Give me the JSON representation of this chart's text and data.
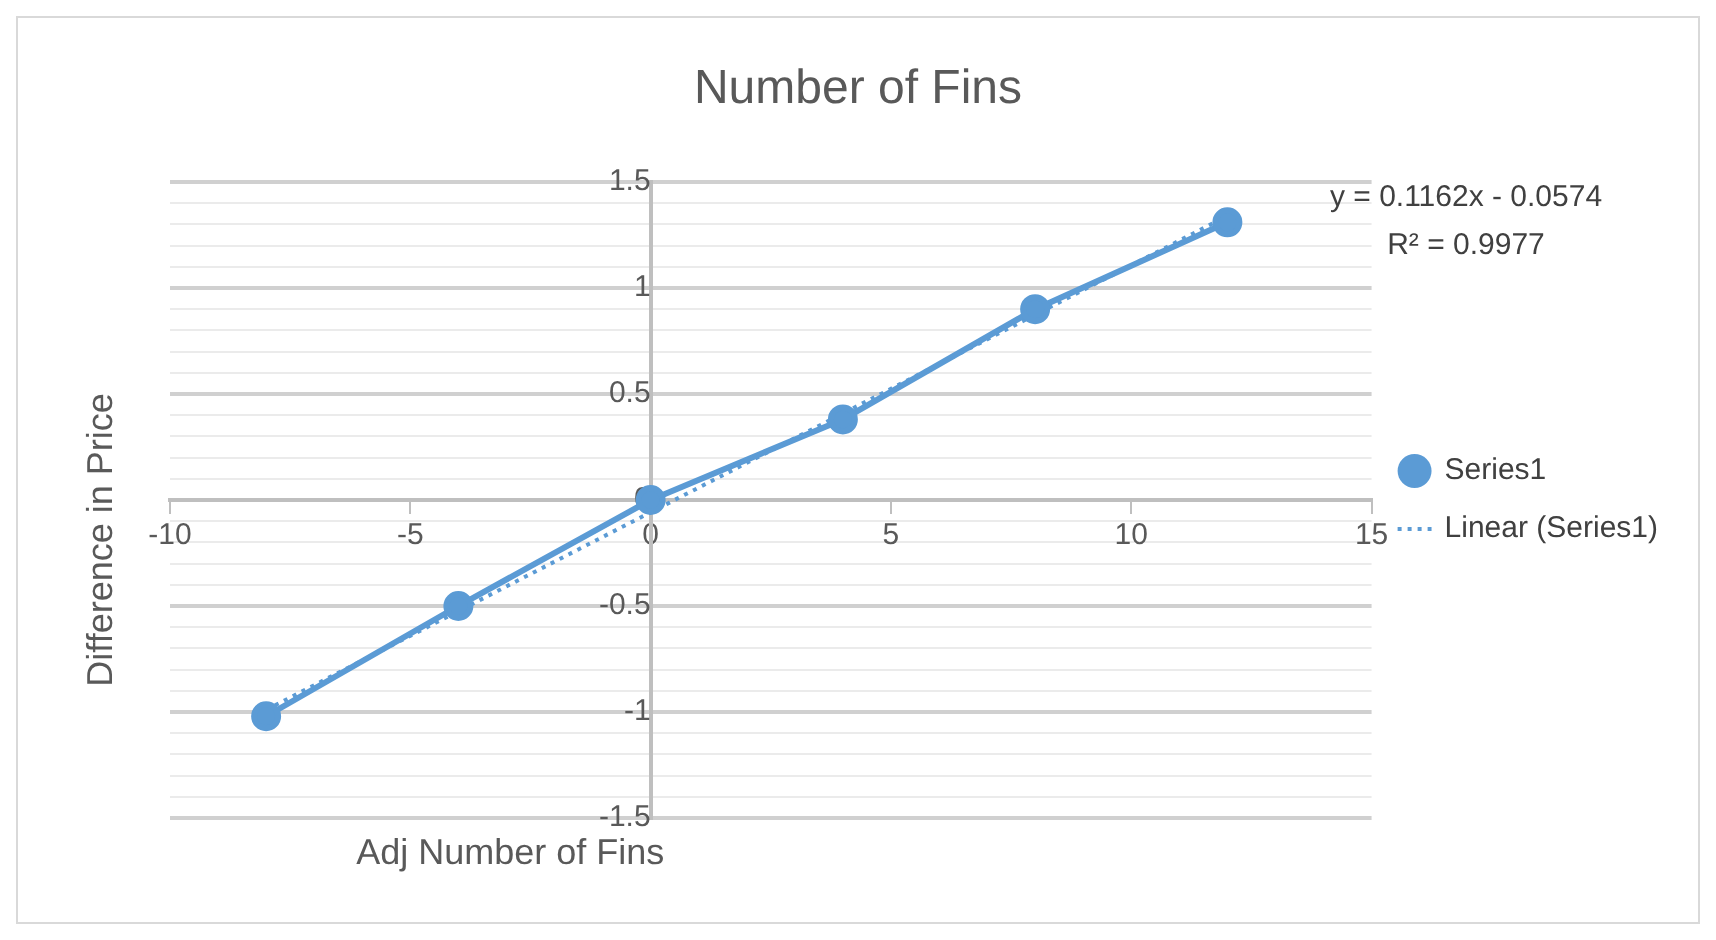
{
  "chart_data": {
    "type": "scatter",
    "title": "Number of Fins",
    "xlabel": "Adj Number of Fins",
    "ylabel": "Difference in Price",
    "x": [
      -8,
      -4,
      0,
      4,
      8,
      12
    ],
    "series": [
      {
        "name": "Series1",
        "type": "line",
        "color": "#5b9bd5",
        "marker": "circle",
        "line_style": "solid",
        "values": [
          -1.02,
          -0.5,
          0,
          0.38,
          0.9,
          1.31
        ]
      },
      {
        "name": "Linear (Series1)",
        "type": "line",
        "color": "#5b9bd5",
        "marker": "none",
        "line_style": "dotted",
        "x": [
          -8,
          12
        ],
        "values": [
          -0.99,
          1.34
        ]
      }
    ],
    "annotations": [
      "y = 0.1162x - 0.0574",
      "R² = 0.9977"
    ],
    "xlim": [
      -10,
      15
    ],
    "xticks": [
      -10,
      -5,
      0,
      5,
      10,
      15
    ],
    "ylim": [
      -1.5,
      1.5
    ],
    "yticks": [
      -1.5,
      {
        "value": -1.4,
        "label": null
      },
      {
        "value": -1.3,
        "label": null
      },
      {
        "value": -1.2,
        "label": null
      },
      {
        "value": -1.1,
        "label": null
      },
      -1,
      {
        "value": -0.9,
        "label": null
      },
      {
        "value": -0.8,
        "label": null
      },
      {
        "value": -0.7,
        "label": null
      },
      {
        "value": -0.6,
        "label": null
      },
      -0.5,
      {
        "value": -0.4,
        "label": null
      },
      {
        "value": -0.3,
        "label": null
      },
      {
        "value": -0.2,
        "label": null
      },
      {
        "value": -0.1,
        "label": null
      },
      0,
      {
        "value": 0.1,
        "label": null
      },
      {
        "value": 0.2,
        "label": null
      },
      {
        "value": 0.3,
        "label": null
      },
      {
        "value": 0.4,
        "label": null
      },
      0.5,
      {
        "value": 0.6,
        "label": null
      },
      {
        "value": 0.7,
        "label": null
      },
      {
        "value": 0.8,
        "label": null
      },
      {
        "value": 0.9,
        "label": null
      },
      1,
      {
        "value": 1.1,
        "label": null
      },
      {
        "value": 1.2,
        "label": null
      },
      {
        "value": 1.3,
        "label": null
      },
      {
        "value": 1.4,
        "label": null
      },
      1.5
    ],
    "grid": "y",
    "legend": "right"
  }
}
